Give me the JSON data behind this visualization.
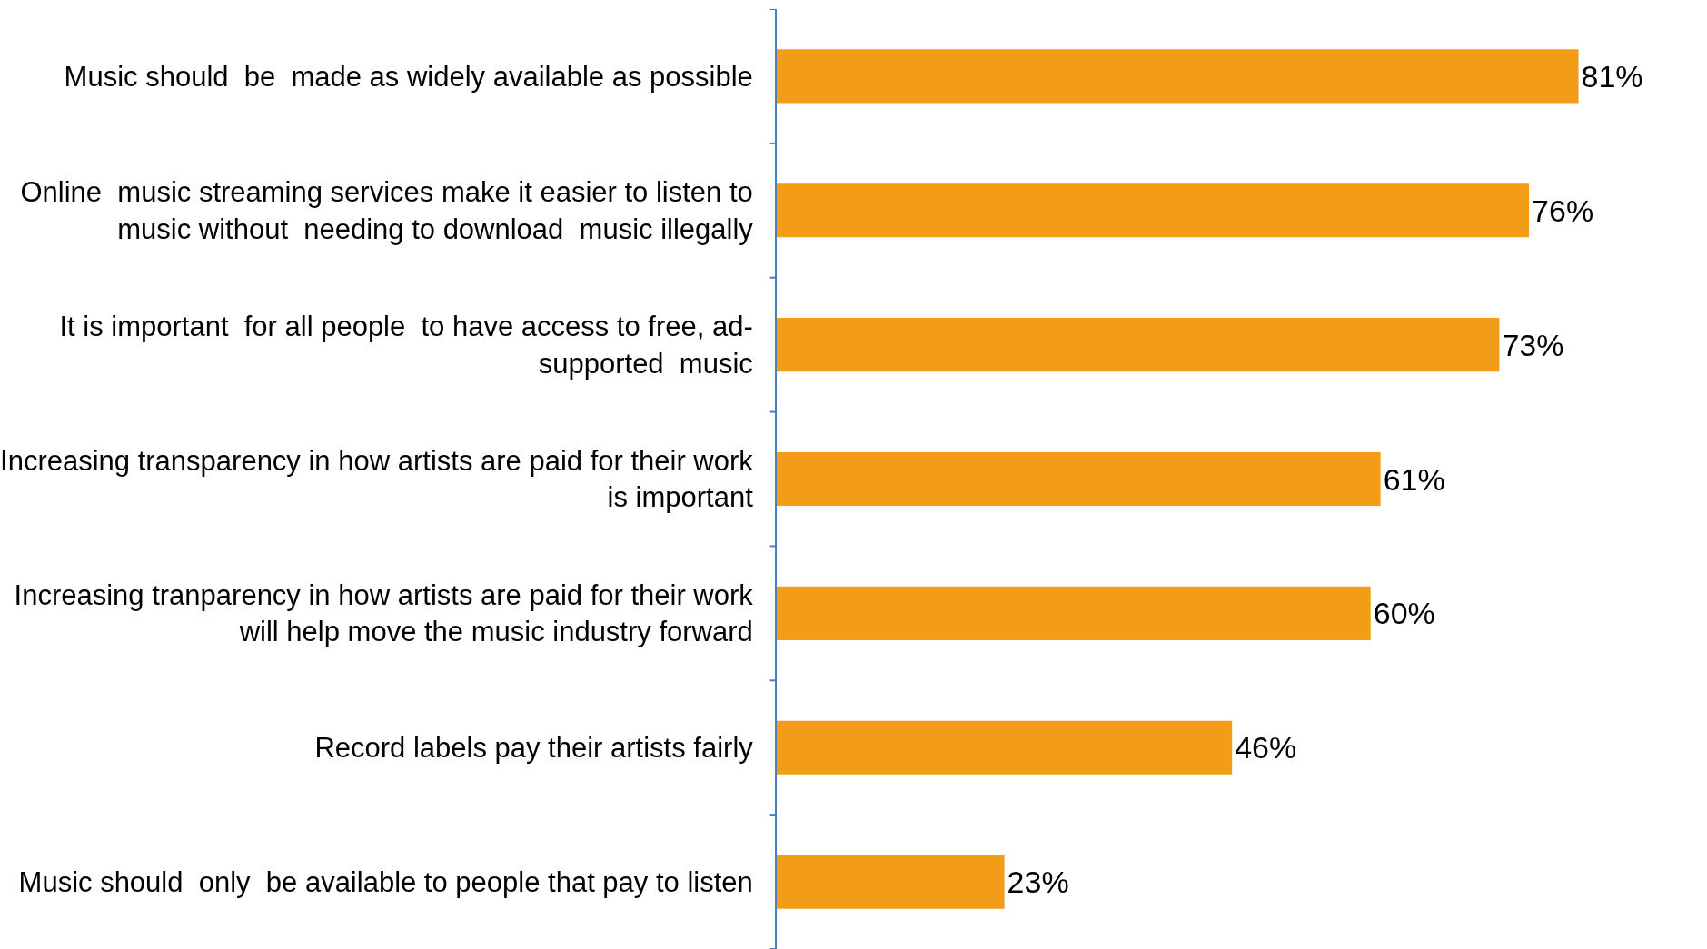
{
  "chart_data": {
    "type": "bar",
    "orientation": "horizontal",
    "categories": [
      "Music should  be  made as widely available as possible",
      "Online  music streaming services make it easier to listen to\nmusic without  needing to download  music illegally",
      "It is important  for all people  to have access to free, ad-\nsupported  music",
      "Increasing transparency in how artists are paid for their work\nis important",
      "Increasing tranparency in how artists are paid for their work\nwill help move the music industry forward",
      "Record labels pay their artists fairly",
      "Music should  only  be available to people that pay to listen"
    ],
    "values": [
      81,
      76,
      73,
      61,
      60,
      46,
      23
    ],
    "color": "#f39c18",
    "value_labels": [
      "81%",
      "76%",
      "73%",
      "61%",
      "60%",
      "46%",
      "23%"
    ],
    "tick_labels": "y",
    "legend": false
  }
}
